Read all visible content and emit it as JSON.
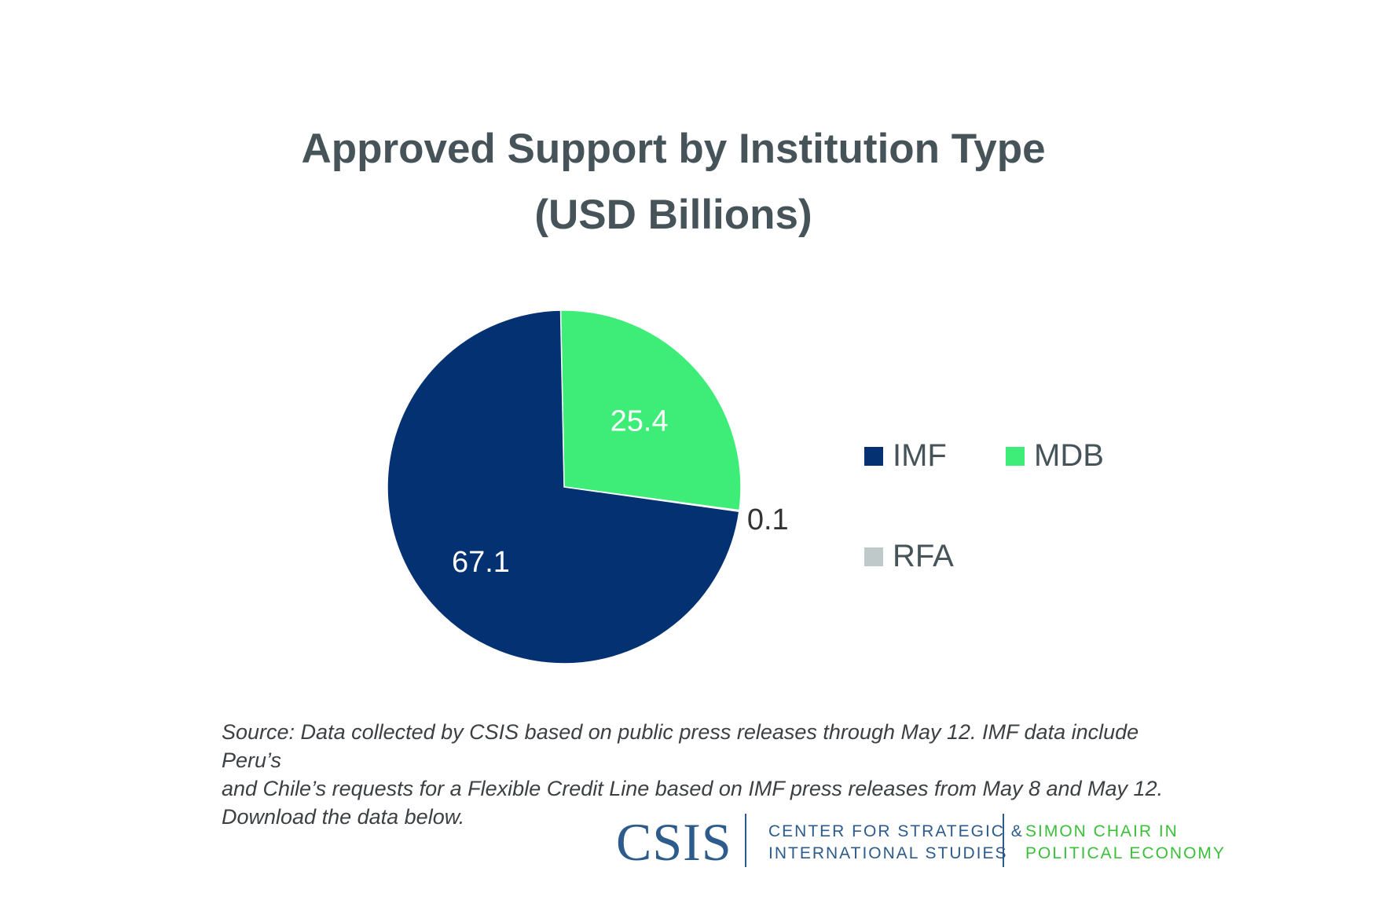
{
  "chart_data": {
    "type": "pie",
    "title_line1": "Approved Support by Institution Type",
    "title_line2": "(USD Billions)",
    "series": [
      {
        "name": "IMF",
        "value": 67.1,
        "label": "67.1",
        "color": "#033172"
      },
      {
        "name": "MDB",
        "value": 25.4,
        "label": "25.4",
        "color": "#3ded78"
      },
      {
        "name": "RFA",
        "value": 0.1,
        "label": "0.1",
        "color": "#c0c9c9"
      }
    ],
    "legend_position": "right"
  },
  "source_text_lines": [
    "Source: Data collected by CSIS based on public press releases through May 12. IMF data include Peru’s",
    "and Chile’s requests for a Flexible Credit Line based on IMF press releases from May 8 and May 12.",
    "Download the data below."
  ],
  "footer": {
    "logo_text": "CSIS",
    "org_line1": "CENTER FOR STRATEGIC &",
    "org_line2": "INTERNATIONAL STUDIES",
    "chair_line1": "SIMON CHAIR IN",
    "chair_line2": "POLITICAL ECONOMY"
  }
}
